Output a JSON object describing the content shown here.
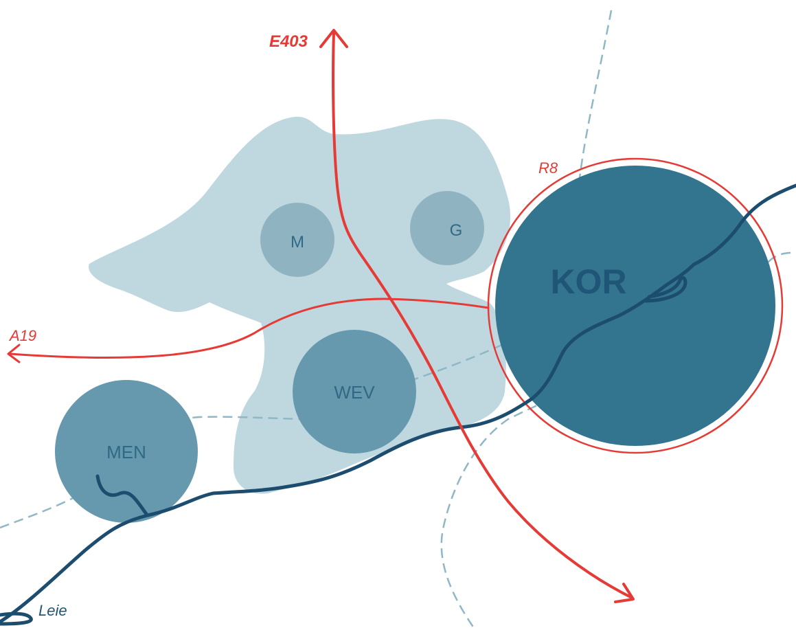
{
  "colors": {
    "background": "#ffffff",
    "urban_area": "#bfd8e0",
    "city_medium": "#6699ad",
    "city_small": "#90b3c2",
    "city_large": "#33758f",
    "road": "#e53a35",
    "river": "#1d4d6e",
    "rail": "#8fb7c6",
    "label_dark": "#1f5677",
    "label_city": "#2e6a86"
  },
  "cities": {
    "men": "MEN",
    "wev": "WEV",
    "m": "M",
    "g": "G",
    "kor": "KOR"
  },
  "roads": {
    "e403": "E403",
    "a19": "A19",
    "r8": "R8"
  },
  "river": {
    "name": "Leie"
  }
}
